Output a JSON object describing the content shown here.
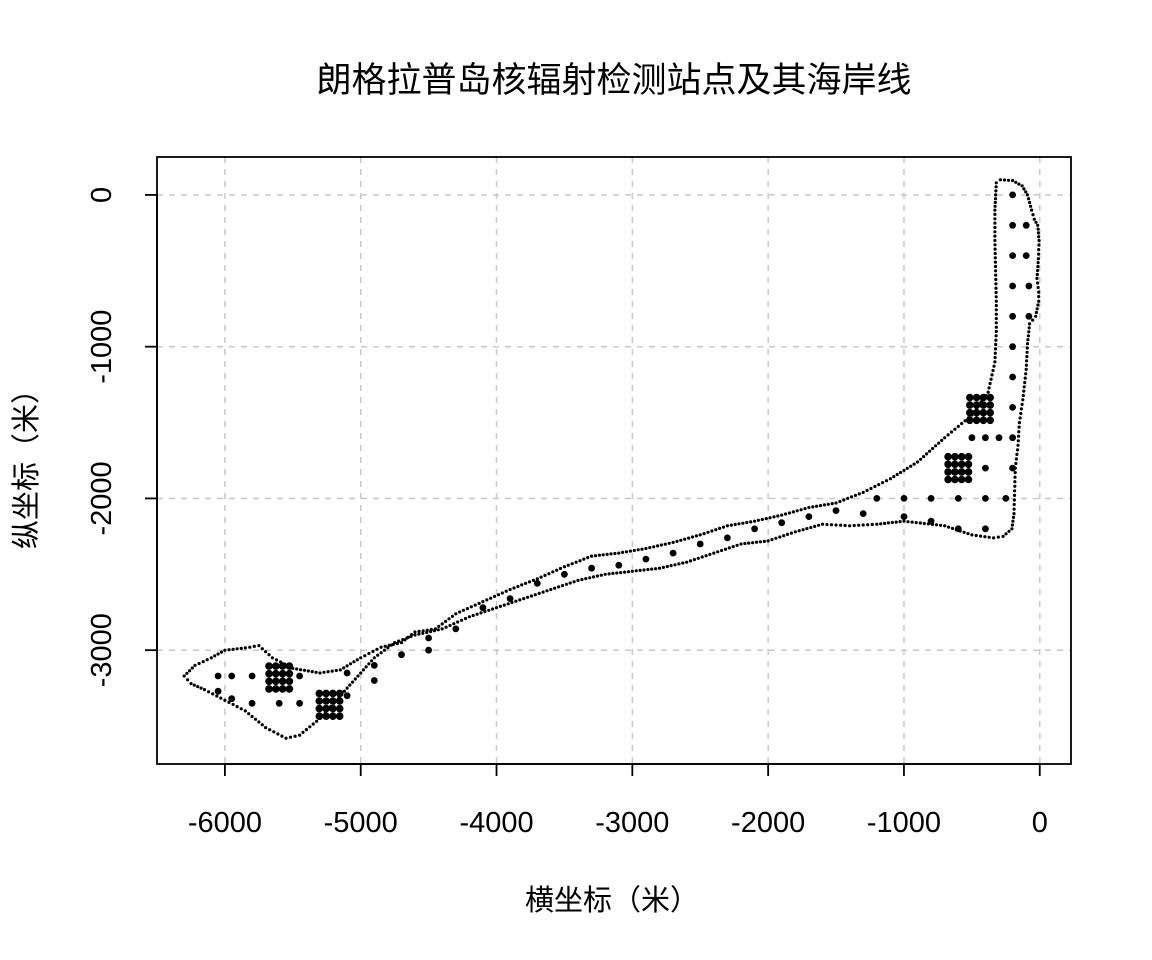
{
  "chart_data": {
    "type": "scatter",
    "title": "朗格拉普岛核辐射检测站点及其海岸线",
    "xlabel": "横坐标（米）",
    "ylabel": "纵坐标（米）",
    "xlim": [
      -6500,
      230
    ],
    "ylim": [
      -3750,
      250
    ],
    "x_ticks": [
      -6000,
      -5000,
      -4000,
      -3000,
      -2000,
      -1000,
      0
    ],
    "y_ticks": [
      0,
      -1000,
      -2000,
      -3000
    ],
    "grid": true,
    "coastline_north": [
      [
        -290,
        100
      ],
      [
        -200,
        95
      ],
      [
        -130,
        60
      ],
      [
        -90,
        0
      ],
      [
        -60,
        -100
      ],
      [
        -40,
        -160
      ],
      [
        -15,
        -200
      ],
      [
        -5,
        -300
      ],
      [
        -10,
        -420
      ],
      [
        -20,
        -550
      ],
      [
        -8,
        -640
      ],
      [
        -8,
        -700
      ],
      [
        -30,
        -800
      ],
      [
        -75,
        -850
      ],
      [
        -90,
        -980
      ],
      [
        -100,
        -1150
      ],
      [
        -125,
        -1350
      ],
      [
        -150,
        -1500
      ],
      [
        -160,
        -1650
      ],
      [
        -180,
        -1800
      ],
      [
        -185,
        -1950
      ],
      [
        -190,
        -2100
      ],
      [
        -205,
        -2200
      ],
      [
        -270,
        -2250
      ],
      [
        -340,
        -2260
      ],
      [
        -500,
        -2240
      ],
      [
        -700,
        -2180
      ],
      [
        -1000,
        -2150
      ],
      [
        -1200,
        -2170
      ],
      [
        -1400,
        -2180
      ],
      [
        -1600,
        -2170
      ],
      [
        -1800,
        -2220
      ],
      [
        -2000,
        -2280
      ],
      [
        -2200,
        -2300
      ],
      [
        -2400,
        -2360
      ],
      [
        -2600,
        -2420
      ],
      [
        -2800,
        -2460
      ],
      [
        -3000,
        -2480
      ],
      [
        -3200,
        -2500
      ],
      [
        -3400,
        -2540
      ],
      [
        -3600,
        -2600
      ],
      [
        -3800,
        -2660
      ],
      [
        -4000,
        -2720
      ],
      [
        -4200,
        -2780
      ],
      [
        -4400,
        -2860
      ],
      [
        -4600,
        -2900
      ],
      [
        -4750,
        -2950
      ],
      [
        -4900,
        -3050
      ],
      [
        -5000,
        -3150
      ],
      [
        -5100,
        -3250
      ],
      [
        -5200,
        -3350
      ],
      [
        -5300,
        -3450
      ],
      [
        -5450,
        -3560
      ],
      [
        -5550,
        -3580
      ],
      [
        -5700,
        -3510
      ],
      [
        -5850,
        -3400
      ],
      [
        -6000,
        -3330
      ],
      [
        -6150,
        -3260
      ],
      [
        -6250,
        -3220
      ],
      [
        -6300,
        -3170
      ],
      [
        -6220,
        -3100
      ],
      [
        -6100,
        -3050
      ],
      [
        -6000,
        -3000
      ],
      [
        -5850,
        -2985
      ],
      [
        -5750,
        -2970
      ],
      [
        -5650,
        -3050
      ],
      [
        -5500,
        -3120
      ],
      [
        -5300,
        -3150
      ],
      [
        -5150,
        -3130
      ],
      [
        -5000,
        -3050
      ],
      [
        -4850,
        -2980
      ],
      [
        -4700,
        -2950
      ],
      [
        -4600,
        -2880
      ],
      [
        -4450,
        -2860
      ],
      [
        -4300,
        -2760
      ],
      [
        -4100,
        -2680
      ],
      [
        -3900,
        -2600
      ],
      [
        -3700,
        -2530
      ],
      [
        -3500,
        -2450
      ],
      [
        -3300,
        -2380
      ],
      [
        -3100,
        -2360
      ],
      [
        -2900,
        -2330
      ],
      [
        -2700,
        -2290
      ],
      [
        -2500,
        -2240
      ],
      [
        -2300,
        -2180
      ],
      [
        -2100,
        -2150
      ],
      [
        -1900,
        -2110
      ],
      [
        -1700,
        -2060
      ],
      [
        -1500,
        -2030
      ],
      [
        -1300,
        -1960
      ],
      [
        -1100,
        -1870
      ],
      [
        -900,
        -1760
      ],
      [
        -700,
        -1600
      ],
      [
        -500,
        -1450
      ],
      [
        -380,
        -1300
      ],
      [
        -330,
        -1100
      ],
      [
        -320,
        -900
      ],
      [
        -320,
        -700
      ],
      [
        -325,
        -500
      ],
      [
        -330,
        -300
      ],
      [
        -330,
        -100
      ],
      [
        -325,
        0
      ],
      [
        -320,
        80
      ],
      [
        -290,
        100
      ]
    ],
    "stations_regular": [
      [
        -200,
        0
      ],
      [
        -100,
        -200
      ],
      [
        -200,
        -200
      ],
      [
        -100,
        -400
      ],
      [
        -200,
        -400
      ],
      [
        -80,
        -600
      ],
      [
        -200,
        -600
      ],
      [
        -200,
        -800
      ],
      [
        -80,
        -800
      ],
      [
        -200,
        -1000
      ],
      [
        -200,
        -1200
      ],
      [
        -200,
        -1400
      ],
      [
        -200,
        -1600
      ],
      [
        -300,
        -1600
      ],
      [
        -400,
        -1600
      ],
      [
        -500,
        -1600
      ],
      [
        -200,
        -1800
      ],
      [
        -400,
        -1800
      ],
      [
        -250,
        -2000
      ],
      [
        -400,
        -2000
      ],
      [
        -600,
        -2000
      ],
      [
        -800,
        -2000
      ],
      [
        -1000,
        -2000
      ],
      [
        -1200,
        -2000
      ],
      [
        -400,
        -2200
      ],
      [
        -600,
        -2200
      ],
      [
        -800,
        -2150
      ],
      [
        -1000,
        -2120
      ],
      [
        -1300,
        -2100
      ],
      [
        -1500,
        -2080
      ],
      [
        -1700,
        -2120
      ],
      [
        -1900,
        -2160
      ],
      [
        -2100,
        -2200
      ],
      [
        -2300,
        -2260
      ],
      [
        -2500,
        -2300
      ],
      [
        -2700,
        -2360
      ],
      [
        -2900,
        -2400
      ],
      [
        -3100,
        -2440
      ],
      [
        -3300,
        -2460
      ],
      [
        -3500,
        -2500
      ],
      [
        -3700,
        -2560
      ],
      [
        -3900,
        -2660
      ],
      [
        -4100,
        -2720
      ],
      [
        -4300,
        -2860
      ],
      [
        -4500,
        -2920
      ],
      [
        -4500,
        -3000
      ],
      [
        -4700,
        -3030
      ],
      [
        -4900,
        -3100
      ],
      [
        -4900,
        -3200
      ],
      [
        -5100,
        -3150
      ],
      [
        -5100,
        -3300
      ],
      [
        -5450,
        -3350
      ],
      [
        -5600,
        -3350
      ],
      [
        -5800,
        -3350
      ],
      [
        -5450,
        -3170
      ],
      [
        -5800,
        -3170
      ],
      [
        -5950,
        -3170
      ],
      [
        -5950,
        -3320
      ],
      [
        -6050,
        -3170
      ],
      [
        -6050,
        -3270
      ]
    ],
    "stations_dense": [
      {
        "center": [
          -440,
          -1410
        ],
        "step": 50,
        "n": 4
      },
      {
        "center": [
          -600,
          -1800
        ],
        "step": 50,
        "n": 4
      },
      {
        "center": [
          -5600,
          -3180
        ],
        "step": 50,
        "n": 4
      },
      {
        "center": [
          -5230,
          -3360
        ],
        "step": 50,
        "n": 4
      }
    ]
  }
}
